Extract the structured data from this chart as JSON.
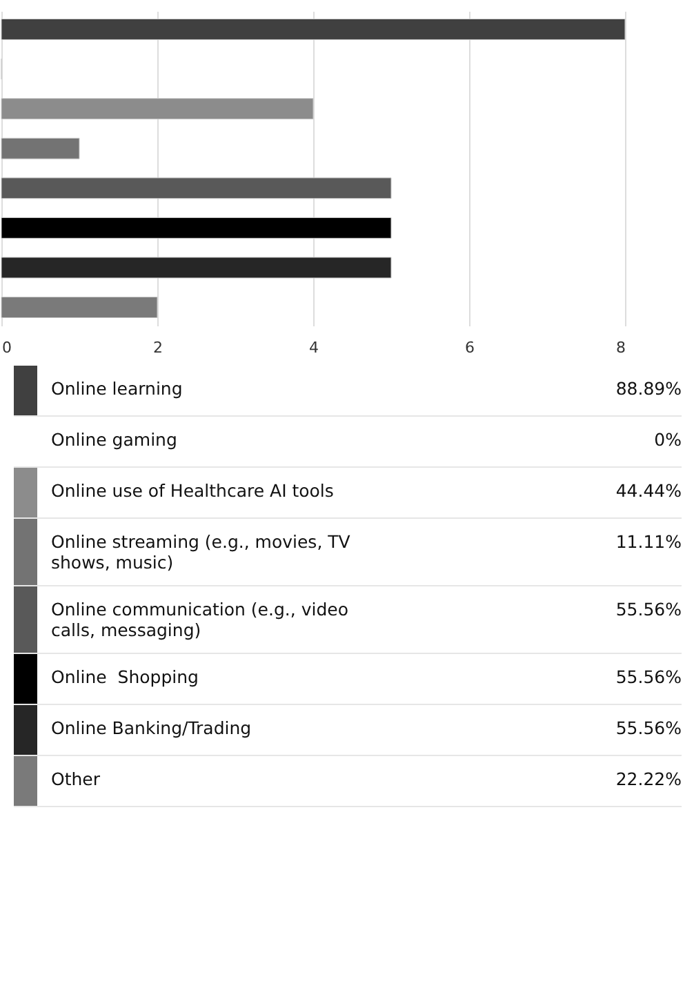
{
  "chart_data": [
    {
      "type": "bar",
      "orientation": "horizontal",
      "categories": [
        null,
        null,
        null,
        null,
        null,
        null,
        null,
        null
      ],
      "values": [
        8,
        0,
        4,
        1,
        5,
        5,
        5,
        2
      ],
      "colors": [
        "#404040",
        "#bfbfbf",
        "#8c8c8c",
        "#737373",
        "#595959",
        "#000000",
        "#262626",
        "#7a7a7a"
      ],
      "xlim": [
        0,
        8
      ],
      "xticks": [
        0,
        2,
        4,
        6,
        8
      ],
      "grid": "x",
      "tick_labels": "x"
    },
    {
      "type": "other",
      "categories": [
        "Online learning",
        "Online gaming",
        "Online use of Healthcare AI tools",
        "Online streaming (e.g., movies, TV shows, music)",
        "Online communication (e.g., video calls, messaging)",
        "Online  Shopping",
        "Online Banking/Trading",
        "Other"
      ],
      "annotations": [
        "88.89%",
        "0%",
        "44.44%",
        "11.11%",
        "55.56%",
        "55.56%",
        "55.56%",
        "22.22%"
      ],
      "colors": [
        "#404040",
        null,
        "#8c8c8c",
        "#737373",
        "#595959",
        "#000000",
        "#262626",
        "#7a7a7a"
      ]
    }
  ]
}
